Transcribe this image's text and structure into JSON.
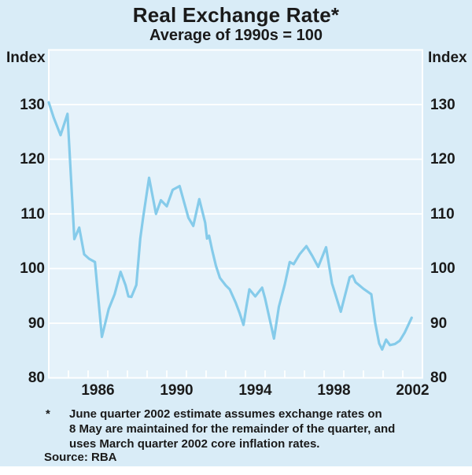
{
  "title": "Real Exchange Rate*",
  "subtitle": "Average of 1990s = 100",
  "axis": {
    "left_unit": "Index",
    "right_unit": "Index",
    "yticks": [
      130,
      120,
      110,
      100,
      90,
      80
    ],
    "xticks": [
      1986,
      1990,
      1994,
      1998,
      2002
    ]
  },
  "footnote": {
    "marker": "*",
    "lines": [
      "June quarter 2002 estimate assumes exchange rates on",
      "8 May are maintained for the remainder of the quarter, and",
      "uses March quarter 2002 core inflation rates."
    ],
    "source": "Source: RBA"
  },
  "colors": {
    "background": "#d9ecf7",
    "plot_background": "#e5f2fa",
    "grid": "#ffffff",
    "line": "#85cbea",
    "text": "#1a1a1a"
  },
  "chart_data": {
    "type": "line",
    "title": "Real Exchange Rate*",
    "subtitle": "Average of 1990s = 100",
    "xlabel": "",
    "ylabel": "Index",
    "ylim": [
      80,
      140
    ],
    "xlim": [
      1984,
      2003
    ],
    "grid": "horizontal white gridlines at 90,100,110,120,130; white year ticks on bottom axis",
    "legend_position": "none",
    "series": [
      {
        "name": "Real exchange rate (average of 1990s = 100)",
        "points": [
          [
            1984.0,
            130.4
          ],
          [
            1984.25,
            127.6
          ],
          [
            1984.6,
            124.4
          ],
          [
            1984.95,
            128.3
          ],
          [
            1985.3,
            105.4
          ],
          [
            1985.55,
            107.5
          ],
          [
            1985.8,
            102.6
          ],
          [
            1986.05,
            101.8
          ],
          [
            1986.35,
            101.2
          ],
          [
            1986.7,
            87.5
          ],
          [
            1987.05,
            92.6
          ],
          [
            1987.35,
            95.3
          ],
          [
            1987.65,
            99.4
          ],
          [
            1987.9,
            97.0
          ],
          [
            1988.05,
            94.9
          ],
          [
            1988.2,
            94.8
          ],
          [
            1988.45,
            97.0
          ],
          [
            1988.65,
            105.5
          ],
          [
            1988.8,
            109.4
          ],
          [
            1989.1,
            116.6
          ],
          [
            1989.45,
            110.0
          ],
          [
            1989.7,
            112.5
          ],
          [
            1990.0,
            111.4
          ],
          [
            1990.3,
            114.4
          ],
          [
            1990.65,
            115.1
          ],
          [
            1991.1,
            109.3
          ],
          [
            1991.35,
            107.8
          ],
          [
            1991.65,
            112.7
          ],
          [
            1991.95,
            108.4
          ],
          [
            1992.05,
            105.5
          ],
          [
            1992.15,
            106.0
          ],
          [
            1992.3,
            103.5
          ],
          [
            1992.5,
            100.5
          ],
          [
            1992.7,
            98.3
          ],
          [
            1993.0,
            96.9
          ],
          [
            1993.2,
            96.2
          ],
          [
            1993.5,
            93.8
          ],
          [
            1993.7,
            91.9
          ],
          [
            1993.9,
            89.7
          ],
          [
            1994.05,
            93.0
          ],
          [
            1994.2,
            96.2
          ],
          [
            1994.5,
            94.9
          ],
          [
            1994.85,
            96.5
          ],
          [
            1995.0,
            94.5
          ],
          [
            1995.45,
            87.2
          ],
          [
            1995.7,
            93.0
          ],
          [
            1996.0,
            97.1
          ],
          [
            1996.25,
            101.2
          ],
          [
            1996.45,
            100.8
          ],
          [
            1996.75,
            102.6
          ],
          [
            1997.1,
            104.1
          ],
          [
            1997.4,
            102.3
          ],
          [
            1997.7,
            100.3
          ],
          [
            1998.1,
            103.9
          ],
          [
            1998.4,
            97.3
          ],
          [
            1998.85,
            92.1
          ],
          [
            1999.3,
            98.4
          ],
          [
            1999.45,
            98.7
          ],
          [
            1999.6,
            97.5
          ],
          [
            1999.8,
            96.9
          ],
          [
            2000.0,
            96.3
          ],
          [
            2000.2,
            95.8
          ],
          [
            2000.4,
            95.3
          ],
          [
            2000.6,
            90.0
          ],
          [
            2000.8,
            86.3
          ],
          [
            2000.95,
            85.2
          ],
          [
            2001.15,
            87.0
          ],
          [
            2001.35,
            86.0
          ],
          [
            2001.6,
            86.2
          ],
          [
            2001.85,
            86.8
          ],
          [
            2002.1,
            88.3
          ],
          [
            2002.45,
            91.0
          ]
        ]
      }
    ]
  }
}
